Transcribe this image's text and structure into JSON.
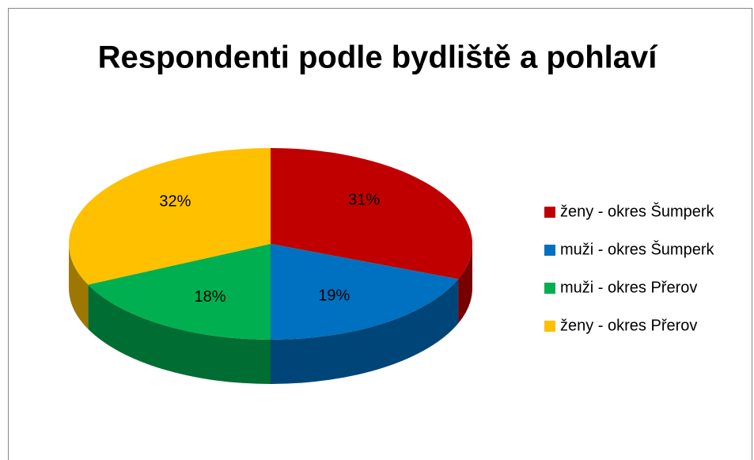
{
  "chart_data": {
    "type": "pie",
    "title": "Respondenti podle bydliště a pohlaví",
    "categories": [
      "ženy - okres Šumperk",
      "muži - okres Šumperk",
      "muži - okres Přerov",
      "ženy - okres Přerov"
    ],
    "values": [
      31,
      19,
      18,
      32
    ],
    "value_labels": [
      "31%",
      "19%",
      "18%",
      "32%"
    ],
    "colors": [
      "#c00000",
      "#0070c0",
      "#00b050",
      "#ffc000"
    ],
    "legend": "right"
  }
}
